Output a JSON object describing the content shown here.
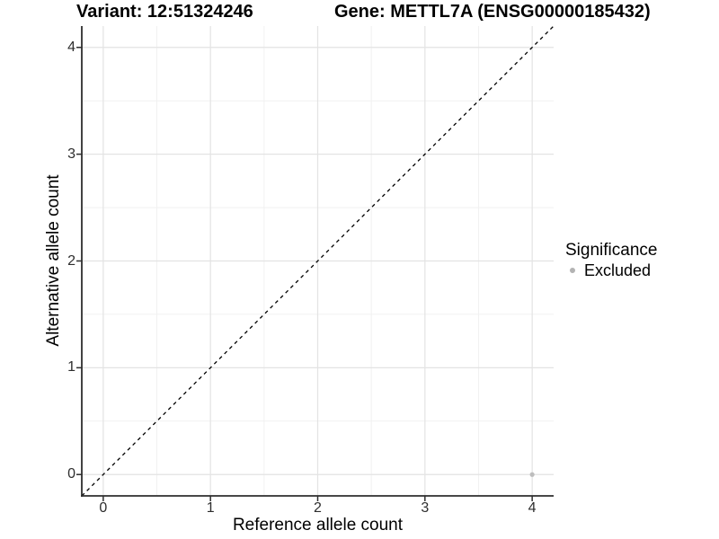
{
  "header": {
    "variant_title": "Variant: 12:51324246",
    "gene_title": "Gene: METTL7A (ENSG00000185432)"
  },
  "legend": {
    "title": "Significance",
    "items": [
      {
        "label": "Excluded",
        "color": "#b3b3b3"
      }
    ]
  },
  "chart_data": {
    "type": "scatter",
    "title": "Variant: 12:51324246 — Gene: METTL7A (ENSG00000185432)",
    "xlabel": "Reference allele count",
    "ylabel": "Alternative allele count",
    "xlim": [
      -0.2,
      4.2
    ],
    "ylim": [
      -0.2,
      4.2
    ],
    "xticks": [
      0,
      1,
      2,
      3,
      4
    ],
    "yticks": [
      0,
      1,
      2,
      3,
      4
    ],
    "minor_ticks": [
      0.5,
      1.5,
      2.5,
      3.5
    ],
    "grid": "major and minor gridlines on white background",
    "legend_position": "right",
    "series": [
      {
        "name": "Excluded",
        "color": "#bdbdbd",
        "points": [
          [
            4,
            0
          ]
        ]
      }
    ],
    "reference_line": {
      "type": "identity y = x",
      "from": [
        -0.2,
        -0.2
      ],
      "to": [
        4.2,
        4.2
      ],
      "style": "dashed",
      "color": "#000000"
    }
  },
  "colors": {
    "background": "#ffffff",
    "grid_major": "#e3e3e3",
    "grid_minor": "#f1f1f1",
    "axis_line": "#2e2e2e",
    "tick_text": "#2e2e2e",
    "point": "#bdbdbd"
  }
}
